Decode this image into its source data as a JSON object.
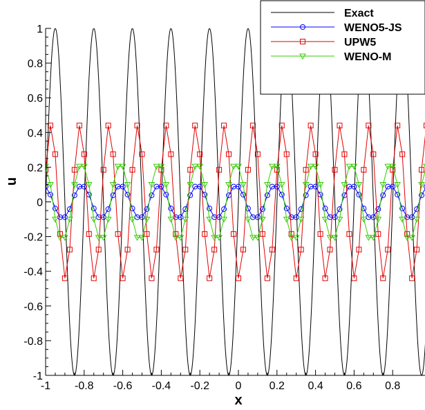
{
  "chart_data": {
    "type": "line",
    "xlabel": "x",
    "ylabel": "u",
    "xlim": [
      -1,
      1
    ],
    "ylim": [
      -1,
      1
    ],
    "x_ticks": [
      "-1",
      "-0.8",
      "-0.6",
      "-0.4",
      "-0.2",
      "0",
      "0.2",
      "0.4",
      "0.6",
      "0.8"
    ],
    "x_tick_values": [
      -1,
      -0.8,
      -0.6,
      -0.4,
      -0.2,
      0,
      0.2,
      0.4,
      0.6,
      0.8
    ],
    "y_ticks": [
      "1",
      "0.8",
      "0.6",
      "0.4",
      "0.2",
      "0",
      "-0.2",
      "-0.4",
      "-0.6",
      "-0.8",
      "-1"
    ],
    "y_tick_values": [
      1,
      0.8,
      0.6,
      0.4,
      0.2,
      0,
      -0.2,
      -0.4,
      -0.6,
      -0.8,
      -1
    ],
    "grid": false,
    "legend_position": "top-right",
    "exact": {
      "name": "Exact",
      "color": "#000000",
      "amplitude": 1,
      "wavelength": 0.2,
      "phase_x_of_peak": -0.95
    },
    "sample_x": [
      -1.0,
      -0.975,
      -0.95,
      -0.925,
      -0.9,
      -0.875,
      -0.85,
      -0.825,
      -0.8,
      -0.775,
      -0.75,
      -0.725,
      -0.7,
      -0.675,
      -0.65,
      -0.625,
      -0.6,
      -0.575,
      -0.55,
      -0.525,
      -0.5,
      -0.475,
      -0.45,
      -0.425,
      -0.4,
      -0.375,
      -0.35,
      -0.325,
      -0.3,
      -0.275,
      -0.25,
      -0.225,
      -0.2,
      -0.175,
      -0.15,
      -0.125,
      -0.1,
      -0.075,
      -0.05,
      -0.025,
      0.0,
      0.025,
      0.05,
      0.075,
      0.1,
      0.125,
      0.15,
      0.175,
      0.2,
      0.225,
      0.25,
      0.275,
      0.3,
      0.325,
      0.35,
      0.375,
      0.4,
      0.425,
      0.45,
      0.475,
      0.5,
      0.525,
      0.55,
      0.575,
      0.6,
      0.625,
      0.65,
      0.675,
      0.7,
      0.725,
      0.75,
      0.775,
      0.8,
      0.825,
      0.85,
      0.875,
      0.9,
      0.925,
      0.95,
      0.975,
      1.0
    ],
    "series": [
      {
        "name": "WENO5-JS",
        "color": "#0000ff",
        "marker": "circle",
        "values": [
          0.088,
          0.042,
          -0.038,
          -0.088,
          -0.088,
          -0.042,
          0.038,
          0.088,
          0.088,
          0.042,
          -0.038,
          -0.088,
          -0.088,
          -0.042,
          0.038,
          0.088,
          0.088,
          0.042,
          -0.038,
          -0.088,
          -0.088,
          -0.042,
          0.038,
          0.088,
          0.088,
          0.042,
          -0.038,
          -0.088,
          -0.088,
          -0.042,
          0.038,
          0.088,
          0.088,
          0.042,
          -0.038,
          -0.088,
          -0.088,
          -0.042,
          0.038,
          0.088,
          0.088,
          0.042,
          -0.038,
          -0.088,
          -0.088,
          -0.042,
          0.038,
          0.088,
          0.088,
          0.042,
          -0.038,
          -0.088,
          -0.088,
          -0.042,
          0.038,
          0.088,
          0.088,
          0.042,
          -0.038,
          -0.088,
          -0.088,
          -0.042,
          0.038,
          0.088,
          0.088,
          0.042,
          -0.038,
          -0.088,
          -0.088,
          -0.042,
          0.038,
          0.088,
          0.088,
          0.042,
          -0.038,
          -0.088,
          -0.088,
          -0.042,
          0.038,
          0.088,
          0.088
        ]
      },
      {
        "name": "UPW5",
        "color": "#e00000",
        "marker": "square",
        "values": [
          0.185,
          0.44,
          0.275,
          -0.185,
          -0.44,
          -0.275,
          0.185,
          0.44,
          0.275,
          -0.185,
          -0.44,
          -0.275,
          0.185,
          0.44,
          0.275,
          -0.185,
          -0.44,
          -0.275,
          0.185,
          0.44,
          0.275,
          -0.185,
          -0.44,
          -0.275,
          0.185,
          0.44,
          0.275,
          -0.185,
          -0.44,
          -0.275,
          0.185,
          0.44,
          0.275,
          -0.185,
          -0.44,
          -0.275,
          0.185,
          0.44,
          0.275,
          -0.185,
          -0.44,
          -0.275,
          0.185,
          0.44,
          0.275,
          -0.185,
          -0.44,
          -0.275,
          0.185,
          0.44,
          0.275,
          -0.185,
          -0.44,
          -0.275,
          0.185,
          0.44,
          0.275,
          -0.185,
          -0.44,
          -0.275,
          0.185,
          0.44,
          0.275,
          -0.185,
          -0.44,
          -0.275,
          0.185,
          0.44,
          0.275,
          -0.185,
          -0.44,
          -0.275,
          0.185,
          0.44,
          0.275,
          -0.185,
          -0.44,
          -0.275,
          0.185,
          0.44,
          0.275
        ]
      },
      {
        "name": "WENO-M",
        "color": "#33cc00",
        "marker": "triangle-down",
        "values": [
          0.205,
          0.1,
          -0.1,
          -0.205,
          -0.205,
          -0.1,
          0.1,
          0.205,
          0.205,
          0.1,
          -0.1,
          -0.205,
          -0.205,
          -0.1,
          0.1,
          0.205,
          0.205,
          0.1,
          -0.1,
          -0.205,
          -0.205,
          -0.1,
          0.1,
          0.205,
          0.205,
          0.1,
          -0.1,
          -0.205,
          -0.205,
          -0.1,
          0.1,
          0.205,
          0.205,
          0.1,
          -0.1,
          -0.205,
          -0.205,
          -0.1,
          0.1,
          0.205,
          0.205,
          0.1,
          -0.1,
          -0.205,
          -0.205,
          -0.1,
          0.1,
          0.205,
          0.205,
          0.1,
          -0.1,
          -0.205,
          -0.205,
          -0.1,
          0.1,
          0.205,
          0.205,
          0.1,
          -0.1,
          -0.205,
          -0.205,
          -0.1,
          0.1,
          0.205,
          0.205,
          0.1,
          -0.1,
          -0.205,
          -0.205,
          -0.1,
          0.1,
          0.205,
          0.205,
          0.1,
          -0.1,
          -0.205,
          -0.205,
          -0.1,
          0.1,
          0.205,
          0.205
        ]
      }
    ]
  }
}
